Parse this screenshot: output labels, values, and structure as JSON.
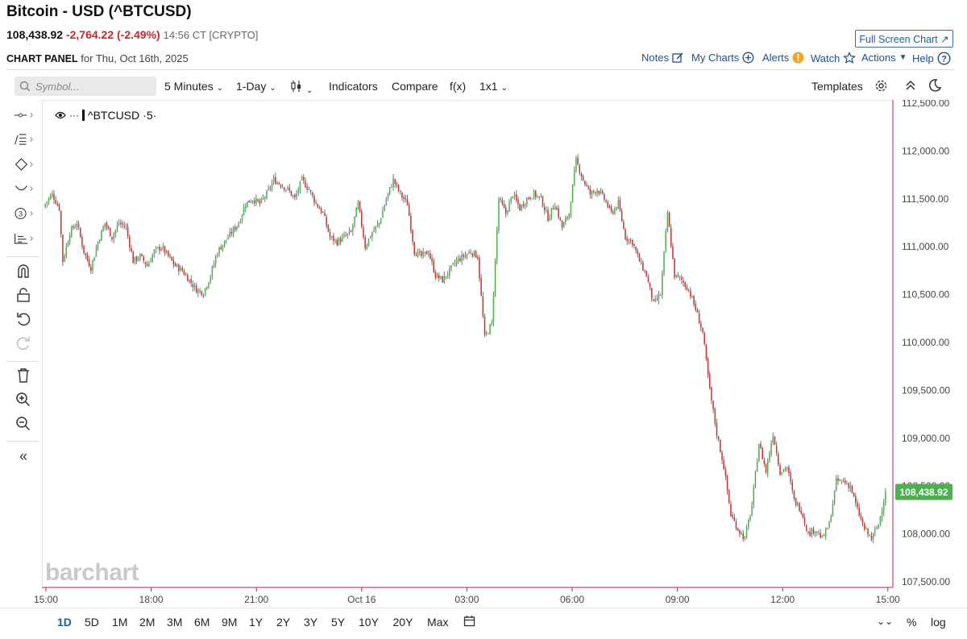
{
  "header": {
    "title": "Bitcoin - USD (^BTCUSD)",
    "price": "108,438.92",
    "change": "-2,764.22 (-2.49%)",
    "time_info": "14:56 CT [CRYPTO]",
    "fullscreen_label": "Full Screen Chart",
    "panel_label": "CHART PANEL",
    "panel_date": "for Thu, Oct 16th, 2025"
  },
  "top_links": {
    "notes": "Notes",
    "my_charts": "My Charts",
    "alerts": "Alerts",
    "watch": "Watch",
    "actions": "Actions",
    "help": "Help"
  },
  "toolbar": {
    "symbol_placeholder": "Symbol...",
    "interval": "5 Minutes",
    "range": "1-Day",
    "indicators": "Indicators",
    "compare": "Compare",
    "fx": "f(x)",
    "layout": "1x1",
    "templates": "Templates"
  },
  "legend": {
    "symbol": "^BTCUSD",
    "interval": "5"
  },
  "watermark": "barchart",
  "ranges": [
    "1D",
    "5D",
    "1M",
    "2M",
    "3M",
    "6M",
    "9M",
    "1Y",
    "2Y",
    "3Y",
    "5Y",
    "10Y",
    "20Y",
    "Max"
  ],
  "selected_range": "1D",
  "scale_buttons": {
    "percent": "%",
    "log": "log"
  },
  "colors": {
    "up": "#4caf50",
    "down": "#d32f2f",
    "last_price_badge": "#4caf50",
    "accent": "#1f5aa6",
    "axis_line": "#c2185b"
  },
  "chart_data": {
    "type": "candlestick",
    "title": "^BTCUSD",
    "interval": "5 Minutes",
    "ylim": [
      107500,
      112500
    ],
    "y_ticks": [
      "112,500.00",
      "112,000.00",
      "111,500.00",
      "111,000.00",
      "110,500.00",
      "110,000.00",
      "109,500.00",
      "109,000.00",
      "108,500.00",
      "108,000.00",
      "107,500.00"
    ],
    "x_ticks": [
      "15:00",
      "18:00",
      "21:00",
      "Oct 16",
      "03:00",
      "06:00",
      "09:00",
      "12:00",
      "15:00"
    ],
    "last_price_label": "108,438.92",
    "last_price": 108438.92,
    "close_path": [
      [
        0,
        111450
      ],
      [
        4,
        111550
      ],
      [
        8,
        111400
      ],
      [
        10,
        110850
      ],
      [
        14,
        111150
      ],
      [
        18,
        111250
      ],
      [
        22,
        110950
      ],
      [
        26,
        110780
      ],
      [
        30,
        111050
      ],
      [
        34,
        111250
      ],
      [
        38,
        111100
      ],
      [
        42,
        111250
      ],
      [
        46,
        111200
      ],
      [
        50,
        110850
      ],
      [
        54,
        110900
      ],
      [
        58,
        110800
      ],
      [
        62,
        110950
      ],
      [
        66,
        111000
      ],
      [
        70,
        110900
      ],
      [
        74,
        110800
      ],
      [
        78,
        110750
      ],
      [
        82,
        110650
      ],
      [
        86,
        110550
      ],
      [
        90,
        110520
      ],
      [
        94,
        110700
      ],
      [
        98,
        110950
      ],
      [
        102,
        111050
      ],
      [
        106,
        111150
      ],
      [
        110,
        111250
      ],
      [
        114,
        111450
      ],
      [
        118,
        111500
      ],
      [
        122,
        111450
      ],
      [
        126,
        111550
      ],
      [
        130,
        111700
      ],
      [
        134,
        111650
      ],
      [
        138,
        111600
      ],
      [
        142,
        111500
      ],
      [
        146,
        111700
      ],
      [
        150,
        111600
      ],
      [
        154,
        111450
      ],
      [
        158,
        111350
      ],
      [
        162,
        111100
      ],
      [
        166,
        111050
      ],
      [
        170,
        111100
      ],
      [
        174,
        111150
      ],
      [
        178,
        111450
      ],
      [
        182,
        111000
      ],
      [
        186,
        111150
      ],
      [
        190,
        111250
      ],
      [
        194,
        111500
      ],
      [
        198,
        111700
      ],
      [
        202,
        111550
      ],
      [
        206,
        111450
      ],
      [
        210,
        110950
      ],
      [
        214,
        110900
      ],
      [
        218,
        110950
      ],
      [
        222,
        110700
      ],
      [
        226,
        110650
      ],
      [
        230,
        110750
      ],
      [
        234,
        110850
      ],
      [
        238,
        110900
      ],
      [
        242,
        110950
      ],
      [
        246,
        110900
      ],
      [
        250,
        110050
      ],
      [
        254,
        110200
      ],
      [
        258,
        111500
      ],
      [
        262,
        111350
      ],
      [
        266,
        111550
      ],
      [
        270,
        111400
      ],
      [
        274,
        111500
      ],
      [
        278,
        111550
      ],
      [
        282,
        111500
      ],
      [
        286,
        111300
      ],
      [
        290,
        111450
      ],
      [
        294,
        111200
      ],
      [
        298,
        111350
      ],
      [
        302,
        111900
      ],
      [
        306,
        111700
      ],
      [
        310,
        111550
      ],
      [
        314,
        111600
      ],
      [
        318,
        111500
      ],
      [
        322,
        111350
      ],
      [
        326,
        111450
      ],
      [
        330,
        111100
      ],
      [
        334,
        111050
      ],
      [
        338,
        110850
      ],
      [
        342,
        110700
      ],
      [
        346,
        110400
      ],
      [
        350,
        110500
      ],
      [
        354,
        111350
      ],
      [
        358,
        110700
      ],
      [
        362,
        110650
      ],
      [
        366,
        110550
      ],
      [
        370,
        110350
      ],
      [
        374,
        110100
      ],
      [
        378,
        109500
      ],
      [
        382,
        109050
      ],
      [
        386,
        108700
      ],
      [
        390,
        108200
      ],
      [
        394,
        108050
      ],
      [
        398,
        107950
      ],
      [
        402,
        108300
      ],
      [
        406,
        108950
      ],
      [
        410,
        108650
      ],
      [
        414,
        109050
      ],
      [
        418,
        108650
      ],
      [
        422,
        108700
      ],
      [
        426,
        108350
      ],
      [
        430,
        108250
      ],
      [
        434,
        108000
      ],
      [
        438,
        108050
      ],
      [
        442,
        107950
      ],
      [
        446,
        108100
      ],
      [
        450,
        108550
      ],
      [
        454,
        108550
      ],
      [
        458,
        108500
      ],
      [
        462,
        108250
      ],
      [
        466,
        108050
      ],
      [
        470,
        107950
      ],
      [
        474,
        108100
      ],
      [
        478,
        108438.92
      ]
    ]
  }
}
